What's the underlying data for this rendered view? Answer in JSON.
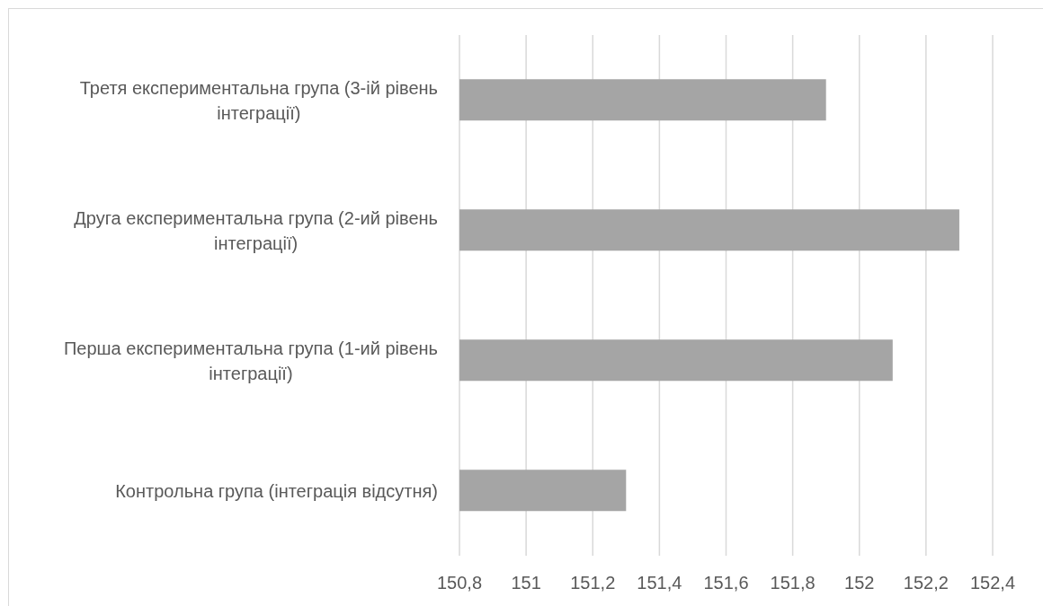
{
  "chart_data": {
    "type": "bar",
    "orientation": "horizontal",
    "categories": [
      "Третя експериментальна група (3-ій рівень інтеграції)",
      "Друга експериментальна група (2-ий рівень інтеграції)",
      "Перша експериментальна група (1-ий рівень інтеграції)",
      "Контрольна група (інтеграція відсутня)"
    ],
    "values": [
      151.9,
      152.3,
      152.1,
      151.3
    ],
    "color": "#a5a5a5",
    "xlim": [
      150.8,
      152.4
    ],
    "xticks": [
      {
        "value": 150.8,
        "label": "150,8"
      },
      151,
      {
        "value": 151.2,
        "label": "151,2"
      },
      {
        "value": 151.4,
        "label": "151,4"
      },
      {
        "value": 151.6,
        "label": "151,6"
      },
      {
        "value": 151.8,
        "label": "151,8"
      },
      152,
      {
        "value": 152.2,
        "label": "152,2"
      },
      {
        "value": 152.4,
        "label": "152,4"
      }
    ],
    "grid": "x"
  }
}
